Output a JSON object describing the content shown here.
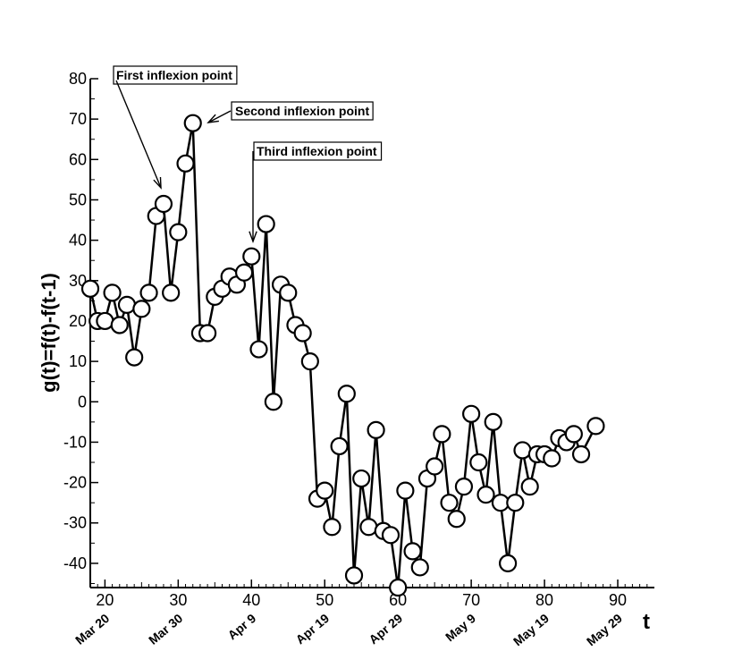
{
  "chart_data": {
    "type": "line",
    "xlabel": "t",
    "ylabel": "g(t)=f(t)-f(t-1)",
    "xlim": [
      18,
      95
    ],
    "ylim": [
      -46,
      80
    ],
    "x_ticks": [
      20,
      30,
      40,
      50,
      60,
      70,
      80,
      90
    ],
    "y_ticks": [
      80,
      70,
      60,
      50,
      40,
      30,
      20,
      10,
      0,
      -10,
      -20,
      -30,
      -40
    ],
    "date_ticks": [
      {
        "x": 20,
        "label": "Mar 20"
      },
      {
        "x": 30,
        "label": "Mar 30"
      },
      {
        "x": 40,
        "label": "Apr 9"
      },
      {
        "x": 50,
        "label": "Apr 19"
      },
      {
        "x": 60,
        "label": "Apr 29"
      },
      {
        "x": 70,
        "label": "May 9"
      },
      {
        "x": 80,
        "label": "May 19"
      },
      {
        "x": 90,
        "label": "May 29"
      }
    ],
    "grid": false,
    "marker": "open-circle",
    "series": [
      {
        "x": [
          18,
          19,
          20,
          21,
          22,
          23,
          24,
          25,
          26,
          27,
          28,
          29,
          30,
          31,
          32,
          33,
          34,
          35,
          36,
          37,
          38,
          39,
          40,
          41,
          42,
          43,
          44,
          45,
          46,
          47,
          48,
          49,
          50,
          51,
          52,
          53,
          54,
          55,
          56,
          57,
          58,
          59,
          60,
          61,
          62,
          63,
          64,
          65,
          66,
          67,
          68,
          69,
          70,
          71,
          72,
          73,
          74,
          75,
          76,
          77,
          78,
          79,
          80,
          81,
          82,
          83,
          84,
          85,
          87
        ],
        "y": [
          28,
          20,
          20,
          27,
          19,
          24,
          11,
          23,
          27,
          46,
          49,
          27,
          42,
          59,
          69,
          17,
          17,
          26,
          28,
          31,
          29,
          32,
          36,
          13,
          44,
          0,
          29,
          27,
          19,
          17,
          10,
          -24,
          -22,
          -31,
          -11,
          2,
          -43,
          -19,
          -31,
          -7,
          -32,
          -33,
          -46,
          -22,
          -37,
          -41,
          -19,
          -16,
          -8,
          -25,
          -29,
          -21,
          -3,
          -15,
          -23,
          -5,
          -25,
          -40,
          -25,
          -12,
          -21,
          -13,
          -13,
          -14,
          -9,
          -10,
          -8,
          -13,
          -6
        ]
      }
    ],
    "annotations": [
      {
        "text": "First inflexion point",
        "x": 28,
        "y": 49
      },
      {
        "text": "Second inflexion point",
        "x": 32,
        "y": 69
      },
      {
        "text": "Third inflexion point",
        "x": 40,
        "y": 36
      }
    ]
  }
}
